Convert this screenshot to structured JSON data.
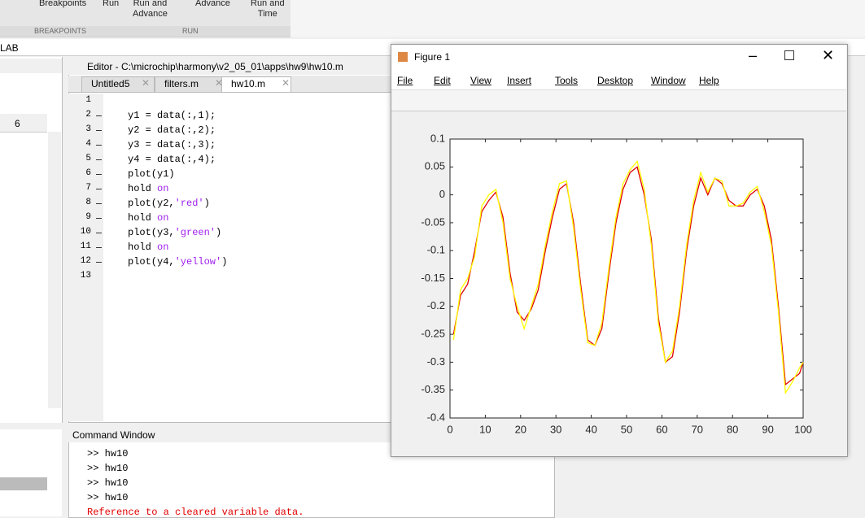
{
  "toolstrip": {
    "buttons": [
      "Breakpoints",
      "Run",
      "Run and\nAdvance",
      "Advance",
      "Run and\nTime"
    ],
    "sections": [
      "BREAKPOINTS",
      "RUN"
    ]
  },
  "address": "LAB",
  "folder_panel": {
    "column": "6"
  },
  "editor": {
    "title": "Editor - C:\\microchip\\harmony\\v2_05_01\\apps\\hw9\\hw10.m",
    "tabs": [
      "Untitled5",
      "filters.m",
      "hw10.m"
    ],
    "lines": [
      {
        "number": 1
      },
      {
        "number": 2,
        "parts": [
          "y1 = data(:,1);"
        ]
      },
      {
        "number": 3,
        "parts": [
          "y2 = data(:,2);"
        ]
      },
      {
        "number": 4,
        "parts": [
          "y3 = data(:,3);"
        ]
      },
      {
        "number": 5,
        "parts": [
          "y4 = data(:,4);"
        ]
      },
      {
        "number": 6,
        "parts": [
          "plot(y1)"
        ]
      },
      {
        "number": 7,
        "parts": [
          "hold ",
          "on"
        ]
      },
      {
        "number": 8,
        "parts": [
          "plot(y2,",
          "'red'",
          ")"
        ]
      },
      {
        "number": 9,
        "parts": [
          "hold ",
          "on"
        ]
      },
      {
        "number": 10,
        "parts": [
          "plot(y3,",
          "'green'",
          ")"
        ]
      },
      {
        "number": 11,
        "parts": [
          "hold ",
          "on"
        ]
      },
      {
        "number": 12,
        "parts": [
          "plot(y4,",
          "'yellow'",
          ")"
        ]
      },
      {
        "number": 13
      }
    ]
  },
  "command_window": {
    "title": "Command Window",
    "lines": [
      ">> hw10",
      ">> hw10",
      ">> hw10",
      ">> hw10"
    ],
    "error": "Reference to a cleared variable data."
  },
  "figure": {
    "title": "Figure 1",
    "menu": [
      "File",
      "Edit",
      "View",
      "Insert",
      "Tools",
      "Desktop",
      "Window",
      "Help"
    ],
    "chart_data": {
      "type": "line",
      "x": [
        1,
        3,
        5,
        7,
        9,
        11,
        13,
        15,
        17,
        19,
        21,
        23,
        25,
        27,
        29,
        31,
        33,
        35,
        37,
        39,
        41,
        43,
        45,
        47,
        49,
        51,
        53,
        55,
        57,
        59,
        61,
        63,
        65,
        67,
        69,
        71,
        73,
        75,
        77,
        79,
        81,
        83,
        85,
        87,
        89,
        91,
        93,
        95,
        97,
        99,
        100
      ],
      "series": [
        {
          "color": "#e00000",
          "values": [
            -0.25,
            -0.18,
            -0.16,
            -0.1,
            -0.03,
            -0.01,
            0.005,
            -0.04,
            -0.14,
            -0.21,
            -0.225,
            -0.205,
            -0.17,
            -0.1,
            -0.04,
            0.01,
            0.02,
            -0.05,
            -0.16,
            -0.26,
            -0.27,
            -0.24,
            -0.14,
            -0.05,
            0.01,
            0.04,
            0.05,
            0.0,
            -0.08,
            -0.22,
            -0.3,
            -0.29,
            -0.21,
            -0.1,
            -0.02,
            0.03,
            0.0,
            0.03,
            0.02,
            -0.01,
            -0.02,
            -0.02,
            0.0,
            0.01,
            -0.02,
            -0.08,
            -0.2,
            -0.34,
            -0.33,
            -0.32,
            -0.3
          ]
        },
        {
          "color": "#ffff00",
          "values": [
            -0.26,
            -0.17,
            -0.15,
            -0.11,
            -0.02,
            0.0,
            0.01,
            -0.05,
            -0.15,
            -0.2,
            -0.24,
            -0.2,
            -0.16,
            -0.09,
            -0.03,
            0.02,
            0.025,
            -0.06,
            -0.17,
            -0.265,
            -0.27,
            -0.23,
            -0.13,
            -0.04,
            0.02,
            0.045,
            0.06,
            0.01,
            -0.09,
            -0.23,
            -0.3,
            -0.28,
            -0.2,
            -0.09,
            -0.01,
            0.04,
            0.005,
            0.03,
            0.025,
            -0.02,
            -0.02,
            -0.015,
            0.005,
            0.015,
            -0.03,
            -0.09,
            -0.21,
            -0.355,
            -0.335,
            -0.31,
            -0.3
          ]
        }
      ],
      "xlim": [
        0,
        100
      ],
      "xticks": [
        0,
        10,
        20,
        30,
        40,
        50,
        60,
        70,
        80,
        90,
        100
      ],
      "ylim": [
        -0.4,
        0.1
      ],
      "yticks": [
        0.1,
        0.05,
        0,
        -0.05,
        -0.1,
        -0.15,
        -0.2,
        -0.25,
        -0.3,
        -0.35,
        -0.4
      ]
    }
  }
}
